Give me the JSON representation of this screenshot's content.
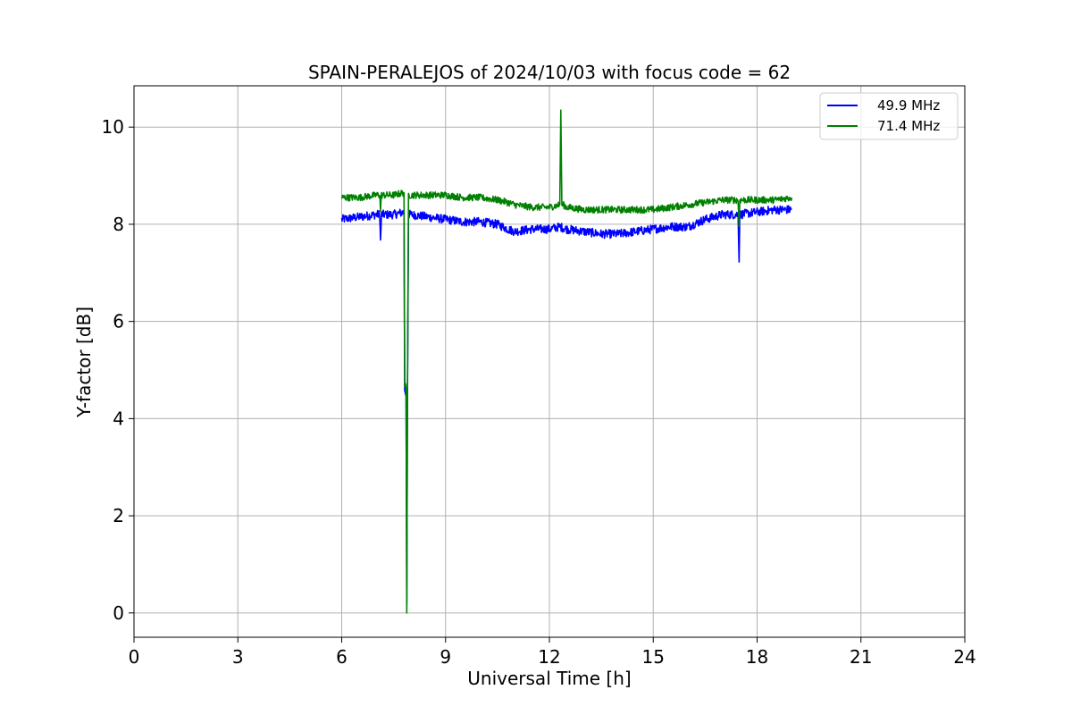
{
  "chart_data": {
    "type": "line",
    "title": "SPAIN-PERALEJOS of 2024/10/03 with focus code = 62",
    "xlabel": "Universal Time [h]",
    "ylabel": "Y-factor [dB]",
    "xlim": [
      0,
      24
    ],
    "ylim": [
      -0.5,
      10.85
    ],
    "xticks": [
      0,
      3,
      6,
      9,
      12,
      15,
      18,
      21,
      24
    ],
    "yticks": [
      0,
      2,
      4,
      6,
      8,
      10
    ],
    "grid": true,
    "legend_position": "top-right",
    "series": [
      {
        "name": "49.9 MHz",
        "color": "#0000ff",
        "noise": 0.09,
        "x": [
          6.0,
          6.5,
          7.0,
          7.1,
          7.12,
          7.15,
          7.5,
          7.8,
          7.82,
          7.86,
          7.88,
          7.9,
          7.93,
          8.0,
          8.5,
          9.0,
          9.5,
          10.0,
          10.5,
          10.8,
          11.0,
          11.5,
          12.0,
          12.3,
          12.5,
          13.0,
          13.5,
          14.0,
          14.5,
          15.0,
          15.5,
          16.0,
          16.5,
          17.0,
          17.45,
          17.48,
          17.5,
          18.0,
          18.5,
          19.0
        ],
        "y": [
          8.1,
          8.15,
          8.2,
          8.2,
          7.65,
          8.2,
          8.2,
          8.25,
          4.6,
          4.5,
          0.2,
          4.5,
          8.2,
          8.2,
          8.15,
          8.1,
          8.05,
          8.05,
          8.0,
          7.9,
          7.85,
          7.9,
          7.9,
          7.95,
          7.9,
          7.85,
          7.8,
          7.8,
          7.85,
          7.9,
          7.95,
          7.95,
          8.1,
          8.2,
          8.2,
          7.3,
          8.2,
          8.25,
          8.3,
          8.3
        ]
      },
      {
        "name": "71.4 MHz",
        "color": "#008000",
        "noise": 0.07,
        "x": [
          6.0,
          6.5,
          7.0,
          7.1,
          7.12,
          7.15,
          7.5,
          7.8,
          7.82,
          7.86,
          7.88,
          7.9,
          7.93,
          8.0,
          8.5,
          9.0,
          9.5,
          10.0,
          10.5,
          10.8,
          11.0,
          11.5,
          12.0,
          12.3,
          12.33,
          12.36,
          12.4,
          12.5,
          13.0,
          13.5,
          14.0,
          14.5,
          15.0,
          15.5,
          16.0,
          16.5,
          17.0,
          17.45,
          17.48,
          17.5,
          18.0,
          18.5,
          19.0
        ],
        "y": [
          8.55,
          8.55,
          8.6,
          8.6,
          8.3,
          8.6,
          8.6,
          8.65,
          4.7,
          4.6,
          0.0,
          4.6,
          8.6,
          8.6,
          8.6,
          8.6,
          8.55,
          8.55,
          8.5,
          8.45,
          8.4,
          8.35,
          8.35,
          8.4,
          10.35,
          8.4,
          8.4,
          8.35,
          8.3,
          8.3,
          8.3,
          8.3,
          8.3,
          8.35,
          8.4,
          8.45,
          8.5,
          8.5,
          7.95,
          8.5,
          8.5,
          8.5,
          8.55
        ]
      }
    ]
  }
}
